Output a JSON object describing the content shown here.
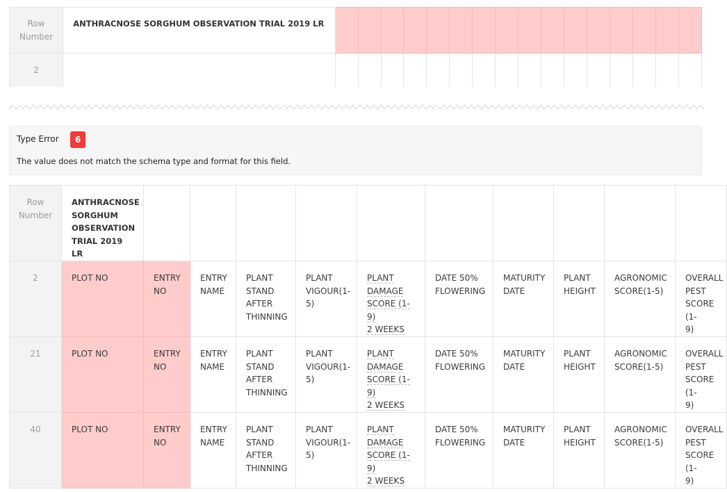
{
  "top_table": {
    "row_number_label": "Row\nNumber",
    "title": "ANTHRACNOSE SORGHUM OBSERVATION TRIAL 2019 LR",
    "row_2_number": "2"
  },
  "error": {
    "title": "Type Error",
    "count": "6",
    "description": "The value does not match the schema type and format for this field."
  },
  "main_table": {
    "row_number_label": "Row\nNumber",
    "title": "ANTHRACNOSE\nSORGHUM\nOBSERVATION\nTRIAL 2019 LR",
    "columns": [
      "PLOT NO",
      "ENTRY\nNO",
      "ENTRY\nNAME",
      "PLANT\nSTAND\nAFTER\nTHINNING",
      "PLANT\nVIGOUR(1-\n5)",
      "PLANT\nDAMAGE\nSCORE (1-9)\n2 WEEKS",
      "DATE 50%\nFLOWERING",
      "MATURITY\nDATE",
      "PLANT\nHEIGHT",
      "AGRONOMIC\nSCORE(1-5)",
      "OVERALL\nPEST\nSCORE (1-\n9)"
    ],
    "rows": [
      {
        "number": "2"
      },
      {
        "number": "21"
      },
      {
        "number": "40"
      }
    ]
  },
  "colors": {
    "error_cell": "#ffcccc",
    "error_badge": "#f03c3c",
    "row_number_bg": "#f3f3f3",
    "border": "#e4e4e4"
  }
}
